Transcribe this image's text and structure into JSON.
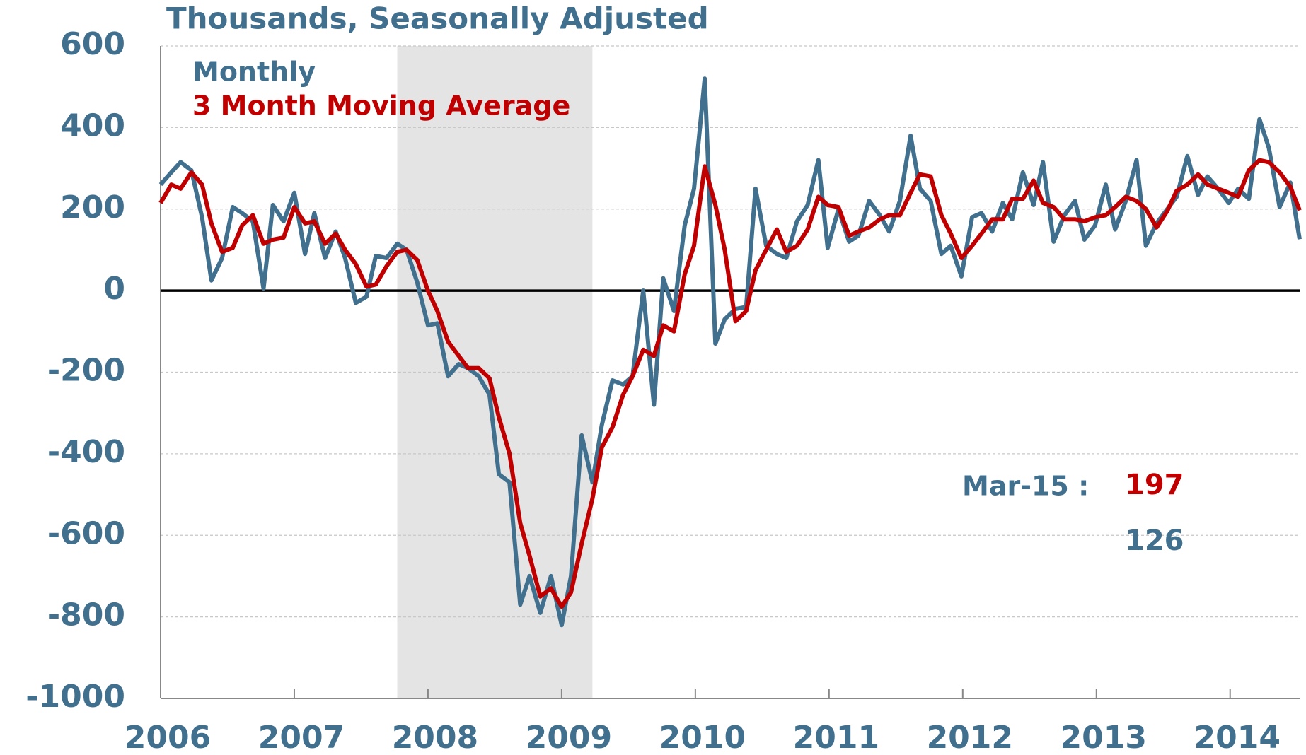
{
  "chart_data": {
    "type": "line",
    "title": "Thousands, Seasonally Adjusted",
    "x": [
      2006.0,
      2006.08,
      2006.15,
      2006.23,
      2006.31,
      2006.38,
      2006.46,
      2006.54,
      2006.61,
      2006.69,
      2006.77,
      2006.84,
      2006.92,
      2007.0,
      2007.08,
      2007.15,
      2007.23,
      2007.31,
      2007.38,
      2007.46,
      2007.54,
      2007.61,
      2007.69,
      2007.77,
      2007.84,
      2007.92,
      2008.0,
      2008.07,
      2008.15,
      2008.23,
      2008.3,
      2008.38,
      2008.46,
      2008.53,
      2008.61,
      2008.69,
      2008.76,
      2008.84,
      2008.92,
      2009.0,
      2009.07,
      2009.15,
      2009.23,
      2009.3,
      2009.38,
      2009.46,
      2009.53,
      2009.61,
      2009.69,
      2009.76,
      2009.84,
      2009.92,
      2009.99,
      2010.07,
      2010.15,
      2010.22,
      2010.3,
      2010.38,
      2010.45,
      2010.53,
      2010.61,
      2010.68,
      2010.76,
      2010.84,
      2010.92,
      2010.99,
      2011.07,
      2011.15,
      2011.22,
      2011.3,
      2011.38,
      2011.45,
      2011.53,
      2011.61,
      2011.68,
      2011.76,
      2011.84,
      2011.91,
      2011.99,
      2012.07,
      2012.14,
      2012.22,
      2012.3,
      2012.37,
      2012.45,
      2012.53,
      2012.6,
      2012.68,
      2012.76,
      2012.84,
      2012.91,
      2012.99,
      2013.07,
      2013.14,
      2013.22,
      2013.3,
      2013.37,
      2013.45,
      2013.53,
      2013.6,
      2013.68,
      2013.76,
      2013.83,
      2013.91,
      2013.99,
      2014.06,
      2014.14,
      2014.22,
      2014.29,
      2014.37,
      2014.45,
      2014.52
    ],
    "series": [
      {
        "name": "Monthly",
        "color": "#41708f",
        "values": [
          260,
          290,
          315,
          295,
          180,
          25,
          80,
          205,
          190,
          170,
          5,
          210,
          170,
          240,
          90,
          190,
          80,
          145,
          80,
          -30,
          -15,
          85,
          80,
          115,
          100,
          20,
          -85,
          -80,
          -210,
          -180,
          -190,
          -210,
          -255,
          -450,
          -470,
          -770,
          -700,
          -790,
          -700,
          -820,
          -700,
          -355,
          -470,
          -330,
          -220,
          -230,
          -210,
          0,
          -280,
          30,
          -50,
          160,
          250,
          520,
          -130,
          -70,
          -45,
          -40,
          250,
          110,
          90,
          80,
          170,
          210,
          320,
          105,
          200,
          120,
          135,
          220,
          185,
          145,
          220,
          380,
          250,
          220,
          90,
          110,
          35,
          180,
          190,
          145,
          215,
          175,
          290,
          210,
          315,
          120,
          185,
          220,
          125,
          160,
          260,
          150,
          220,
          320,
          110,
          165,
          200,
          230,
          330,
          235,
          280,
          250,
          215,
          250,
          225,
          420,
          350,
          205,
          265,
          126
        ]
      },
      {
        "name": "3 Month Moving Average",
        "color": "#c00000",
        "values": [
          215,
          260,
          250,
          290,
          260,
          165,
          95,
          105,
          160,
          185,
          115,
          125,
          130,
          205,
          165,
          170,
          115,
          140,
          100,
          65,
          10,
          15,
          60,
          95,
          100,
          75,
          0,
          -50,
          -125,
          -160,
          -190,
          -190,
          -215,
          -310,
          -400,
          -570,
          -650,
          -750,
          -730,
          -775,
          -740,
          -620,
          -510,
          -385,
          -335,
          -255,
          -210,
          -145,
          -160,
          -85,
          -100,
          40,
          110,
          305,
          210,
          100,
          -75,
          -50,
          50,
          100,
          150,
          95,
          110,
          150,
          230,
          210,
          205,
          135,
          145,
          155,
          175,
          185,
          185,
          240,
          285,
          280,
          185,
          140,
          80,
          110,
          140,
          175,
          175,
          225,
          225,
          270,
          215,
          205,
          175,
          175,
          170,
          180,
          185,
          205,
          230,
          220,
          200,
          155,
          195,
          245,
          260,
          285,
          260,
          250,
          240,
          230,
          295,
          320,
          315,
          290,
          255,
          197
        ]
      }
    ],
    "annotation": "Mar-15 :",
    "shaded_range": [
      2007.77,
      2009.23
    ],
    "xlim": [
      2006,
      2014.52
    ],
    "xticks": [
      2006,
      2007,
      2008,
      2009,
      2010,
      2011,
      2012,
      2013,
      2014
    ],
    "ylim": [
      -1000,
      600
    ],
    "yticks": [
      -1000,
      -800,
      -600,
      -400,
      -200,
      0,
      200,
      400,
      600
    ],
    "grid": true
  }
}
